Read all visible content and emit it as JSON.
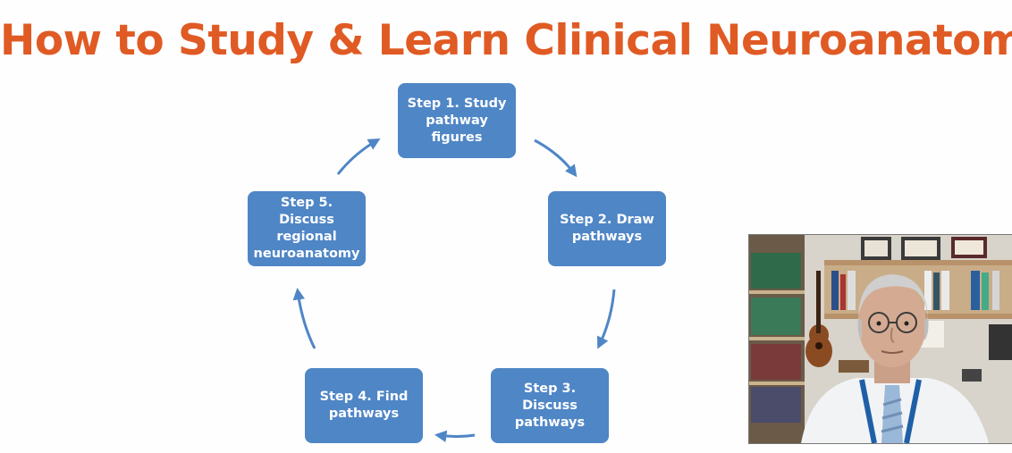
{
  "slide": {
    "title": "How to Study & Learn Clinical Neuroanatomy",
    "accent_color": "#e05a24",
    "box_color": "#4f86c6",
    "arrow_color": "#4f86c6"
  },
  "cycle": {
    "steps": [
      {
        "label": "Step 1. Study pathway figures"
      },
      {
        "label": "Step 2. Draw pathways"
      },
      {
        "label": "Step 3. Discuss pathways"
      },
      {
        "label": "Step 4. Find pathways"
      },
      {
        "label": "Step 5. Discuss regional neuroanatomy"
      }
    ]
  },
  "presenter_video": {
    "description_icon": "presenter-webcam"
  }
}
